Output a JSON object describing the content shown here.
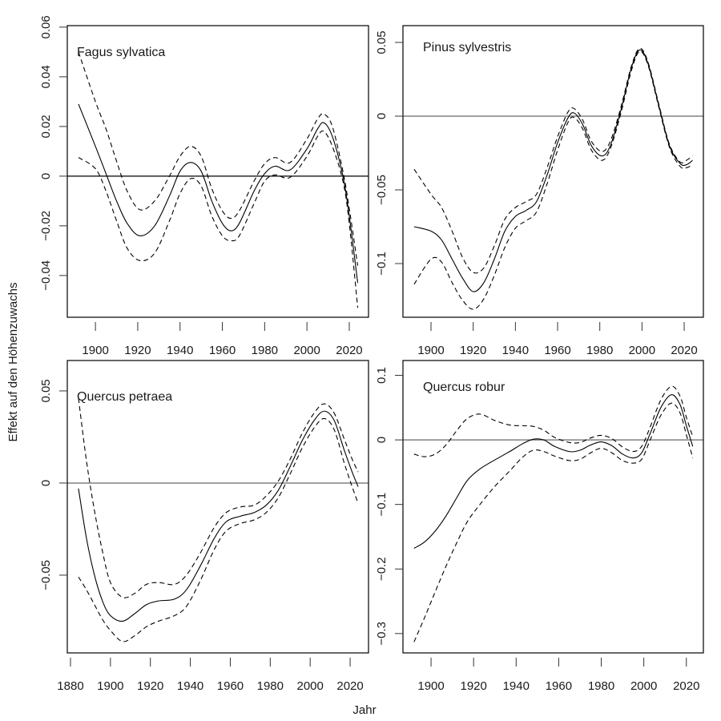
{
  "figure": {
    "ylabel": "Effekt auf den Höhenzuwachs",
    "xlabel": "Jahr",
    "line_color": "#000000",
    "refline_color_black": "#000000",
    "refline_color_gray": "#808080",
    "axis_color": "#000000"
  },
  "chart_data": [
    {
      "type": "line",
      "title": "Fagus sylvatica",
      "xlabel": "Jahr",
      "ylabel": "Effekt auf den Höhenzuwachs",
      "xlim": [
        1886.7,
        2029.1
      ],
      "ylim": [
        -0.0568,
        0.0606
      ],
      "xticks": [
        1900,
        1920,
        1940,
        1960,
        1980,
        2000,
        2020
      ],
      "xtick_labels": [
        "1900",
        "1920",
        "1940",
        "1960",
        "1980",
        "2000",
        "2020"
      ],
      "yticks": [
        -0.04,
        -0.02,
        0,
        0.02,
        0.04,
        0.06
      ],
      "ytick_labels": [
        "−0.04",
        "−0.02",
        "0",
        "0.02",
        "0.04",
        "0.06"
      ],
      "refline": {
        "y": 0,
        "color": "black"
      },
      "x": [
        1892,
        1900,
        1905,
        1910,
        1915,
        1921,
        1928,
        1935,
        1940,
        1945,
        1950,
        1955,
        1960,
        1964,
        1968,
        1975,
        1980,
        1985,
        1992,
        2000,
        2005,
        2008,
        2012,
        2017,
        2020,
        2024
      ],
      "series": [
        {
          "name": "fit",
          "style": "solid",
          "values": [
            0.029,
            0.012,
            0.001,
            -0.01,
            -0.019,
            -0.024,
            -0.02,
            -0.008,
            0.002,
            0.0055,
            0.002,
            -0.01,
            -0.019,
            -0.022,
            -0.019,
            -0.006,
            0.001,
            0.004,
            0.0025,
            0.011,
            0.019,
            0.0215,
            0.016,
            0.0,
            -0.016,
            -0.043
          ]
        },
        {
          "name": "upper",
          "style": "dashed",
          "values": [
            0.05,
            0.03,
            0.019,
            0.006,
            -0.006,
            -0.0135,
            -0.01,
            0.0,
            0.008,
            0.012,
            0.008,
            -0.005,
            -0.014,
            -0.017,
            -0.014,
            -0.002,
            0.005,
            0.0075,
            0.0055,
            0.015,
            0.023,
            0.025,
            0.02,
            0.002,
            -0.013,
            -0.036
          ]
        },
        {
          "name": "lower",
          "style": "dashed",
          "values": [
            0.0075,
            0.003,
            -0.006,
            -0.018,
            -0.029,
            -0.034,
            -0.031,
            -0.018,
            -0.007,
            -0.001,
            -0.004,
            -0.016,
            -0.024,
            -0.026,
            -0.024,
            -0.011,
            -0.002,
            0.0005,
            -0.0005,
            0.008,
            0.016,
            0.018,
            0.012,
            -0.002,
            -0.019,
            -0.053
          ]
        }
      ]
    },
    {
      "type": "line",
      "title": "Pinus sylvestris",
      "xlabel": "Jahr",
      "ylabel": "Effekt auf den Höhenzuwachs",
      "xlim": [
        1886.7,
        2029.1
      ],
      "ylim": [
        -0.1364,
        0.0614
      ],
      "xticks": [
        1900,
        1920,
        1940,
        1960,
        1980,
        2000,
        2020
      ],
      "xtick_labels": [
        "1900",
        "1920",
        "1940",
        "1960",
        "1980",
        "2000",
        "2020"
      ],
      "yticks": [
        -0.1,
        -0.05,
        0,
        0.05
      ],
      "ytick_labels": [
        "−0.1",
        "−0.05",
        "0",
        "0.05"
      ],
      "refline": {
        "y": 0,
        "color": "gray"
      },
      "x": [
        1892,
        1900,
        1905,
        1910,
        1915,
        1920,
        1925,
        1930,
        1935,
        1940,
        1945,
        1950,
        1955,
        1960,
        1965,
        1968,
        1972,
        1976,
        1981,
        1985,
        1990,
        1995,
        1999,
        2003,
        2008,
        2013,
        2018,
        2021,
        2024
      ],
      "series": [
        {
          "name": "fit",
          "style": "solid",
          "values": [
            -0.075,
            -0.078,
            -0.084,
            -0.097,
            -0.11,
            -0.119,
            -0.113,
            -0.097,
            -0.078,
            -0.068,
            -0.064,
            -0.058,
            -0.04,
            -0.018,
            -0.001,
            0.002,
            -0.006,
            -0.02,
            -0.027,
            -0.02,
            0.004,
            0.033,
            0.045,
            0.035,
            0.007,
            -0.02,
            -0.032,
            -0.033,
            -0.03
          ]
        },
        {
          "name": "upper",
          "style": "dashed",
          "values": [
            -0.036,
            -0.053,
            -0.062,
            -0.078,
            -0.096,
            -0.106,
            -0.103,
            -0.088,
            -0.07,
            -0.062,
            -0.058,
            -0.053,
            -0.035,
            -0.014,
            0.003,
            0.005,
            -0.003,
            -0.017,
            -0.024,
            -0.017,
            0.006,
            0.034,
            0.046,
            0.036,
            0.008,
            -0.019,
            -0.031,
            -0.03,
            -0.027
          ]
        },
        {
          "name": "lower",
          "style": "dashed",
          "values": [
            -0.114,
            -0.097,
            -0.099,
            -0.113,
            -0.125,
            -0.131,
            -0.124,
            -0.108,
            -0.089,
            -0.076,
            -0.071,
            -0.065,
            -0.046,
            -0.023,
            -0.004,
            -0.001,
            -0.009,
            -0.023,
            -0.03,
            -0.022,
            0.002,
            0.031,
            0.044,
            0.034,
            0.006,
            -0.021,
            -0.034,
            -0.035,
            -0.033
          ]
        }
      ]
    },
    {
      "type": "line",
      "title": "Quercus petraea",
      "xlabel": "Jahr",
      "ylabel": "Effekt auf den Höhenzuwachs",
      "xlim": [
        1878.4,
        2029.2
      ],
      "ylim": [
        -0.0922,
        0.0665
      ],
      "xticks": [
        1880,
        1900,
        1920,
        1940,
        1960,
        1980,
        2000,
        2020
      ],
      "xtick_labels": [
        "1880",
        "1900",
        "1920",
        "1940",
        "1960",
        "1980",
        "2000",
        "2020"
      ],
      "yticks": [
        -0.05,
        0,
        0.05
      ],
      "ytick_labels": [
        "−0.05",
        "0",
        "0.05"
      ],
      "refline": {
        "y": 0,
        "color": "gray"
      },
      "x": [
        1884,
        1888,
        1892,
        1896,
        1900,
        1906,
        1912,
        1918,
        1924,
        1932,
        1938,
        1945,
        1952,
        1958,
        1965,
        1972,
        1978,
        1984,
        1990,
        1996,
        2002,
        2007,
        2012,
        2017,
        2021,
        2024
      ],
      "series": [
        {
          "name": "fit",
          "style": "solid",
          "values": [
            -0.003,
            -0.03,
            -0.05,
            -0.064,
            -0.072,
            -0.075,
            -0.071,
            -0.066,
            -0.064,
            -0.063,
            -0.058,
            -0.045,
            -0.03,
            -0.021,
            -0.018,
            -0.016,
            -0.012,
            -0.004,
            0.009,
            0.023,
            0.034,
            0.039,
            0.034,
            0.018,
            0.006,
            -0.002
          ]
        },
        {
          "name": "upper",
          "style": "dashed",
          "values": [
            0.046,
            0.012,
            -0.015,
            -0.037,
            -0.054,
            -0.062,
            -0.06,
            -0.055,
            -0.054,
            -0.055,
            -0.05,
            -0.038,
            -0.024,
            -0.016,
            -0.013,
            -0.012,
            -0.007,
            0.001,
            0.013,
            0.027,
            0.038,
            0.043,
            0.038,
            0.024,
            0.013,
            0.006
          ]
        },
        {
          "name": "lower",
          "style": "dashed",
          "values": [
            -0.051,
            -0.058,
            -0.066,
            -0.074,
            -0.08,
            -0.086,
            -0.083,
            -0.078,
            -0.075,
            -0.072,
            -0.067,
            -0.053,
            -0.036,
            -0.026,
            -0.022,
            -0.02,
            -0.016,
            -0.008,
            0.005,
            0.019,
            0.03,
            0.035,
            0.029,
            0.011,
            -0.002,
            -0.011
          ]
        }
      ]
    },
    {
      "type": "line",
      "title": "Quercus robur",
      "xlabel": "Jahr",
      "ylabel": "Effekt auf den Höhenzuwachs",
      "xlim": [
        1886.8,
        2028.0
      ],
      "ylim": [
        -0.33,
        0.123
      ],
      "xticks": [
        1900,
        1920,
        1940,
        1960,
        1980,
        2000,
        2020
      ],
      "xtick_labels": [
        "1900",
        "1920",
        "1940",
        "1960",
        "1980",
        "2000",
        "2020"
      ],
      "yticks": [
        -0.3,
        -0.2,
        -0.1,
        0,
        0.1
      ],
      "ytick_labels": [
        "−0.3",
        "−0.2",
        "−0.1",
        "0",
        "0.1"
      ],
      "refline": {
        "y": 0,
        "color": "gray"
      },
      "x": [
        1892,
        1897,
        1902,
        1907,
        1912,
        1917,
        1923,
        1930,
        1937,
        1943,
        1948,
        1953,
        1958,
        1965,
        1970,
        1975,
        1980,
        1985,
        1990,
        1995,
        1999,
        2003,
        2008,
        2013,
        2017,
        2020,
        2023
      ],
      "series": [
        {
          "name": "fit",
          "style": "solid",
          "values": [
            -0.168,
            -0.158,
            -0.141,
            -0.118,
            -0.09,
            -0.063,
            -0.045,
            -0.031,
            -0.018,
            -0.006,
            0.001,
            0.0,
            -0.01,
            -0.018,
            -0.016,
            -0.008,
            -0.003,
            -0.009,
            -0.022,
            -0.028,
            -0.02,
            0.01,
            0.05,
            0.07,
            0.055,
            0.022,
            -0.01
          ]
        },
        {
          "name": "upper",
          "style": "dashed",
          "values": [
            -0.022,
            -0.026,
            -0.022,
            -0.008,
            0.014,
            0.033,
            0.04,
            0.03,
            0.023,
            0.022,
            0.021,
            0.015,
            0.004,
            -0.004,
            -0.004,
            0.003,
            0.007,
            0.002,
            -0.011,
            -0.018,
            -0.01,
            0.02,
            0.062,
            0.083,
            0.068,
            0.035,
            0.005
          ]
        },
        {
          "name": "lower",
          "style": "dashed",
          "values": [
            -0.313,
            -0.275,
            -0.235,
            -0.196,
            -0.16,
            -0.127,
            -0.1,
            -0.072,
            -0.048,
            -0.027,
            -0.016,
            -0.018,
            -0.025,
            -0.032,
            -0.03,
            -0.02,
            -0.013,
            -0.02,
            -0.032,
            -0.036,
            -0.03,
            0.0,
            0.038,
            0.057,
            0.042,
            0.008,
            -0.028
          ]
        }
      ]
    }
  ]
}
